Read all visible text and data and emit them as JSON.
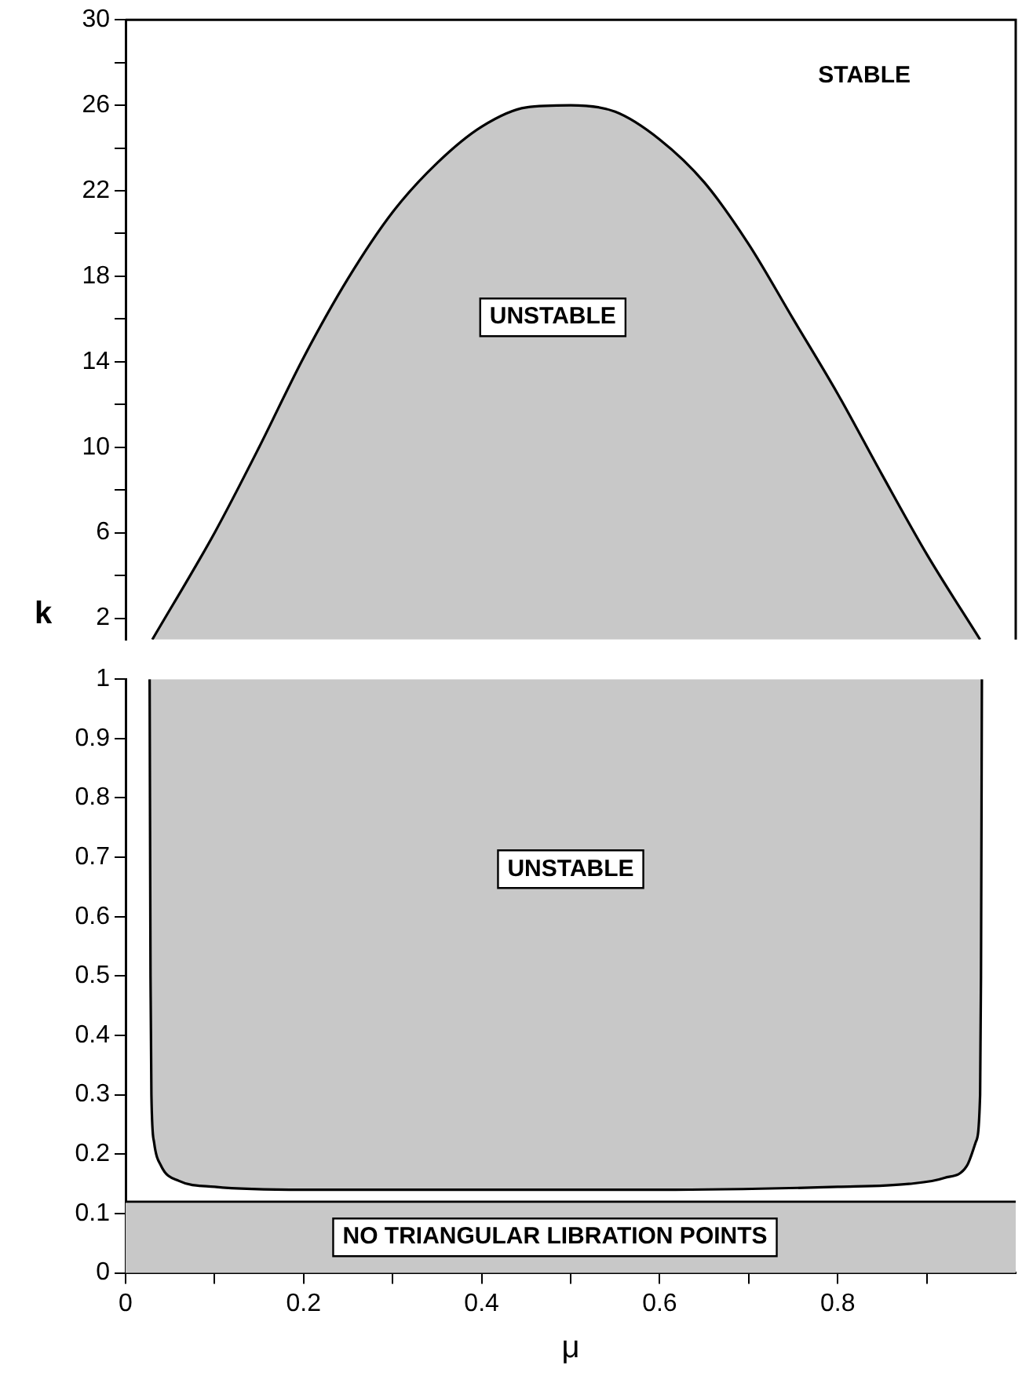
{
  "chart_data": [
    {
      "type": "area",
      "ylabel": "k",
      "xlim": [
        0,
        1
      ],
      "ylim": [
        1,
        30
      ],
      "tick_labels": "y",
      "yticks": [
        2,
        {
          "value": 4,
          "label": null
        },
        6,
        {
          "value": 8,
          "label": null
        },
        10,
        {
          "value": 12,
          "label": null
        },
        14,
        {
          "value": 16,
          "label": null
        },
        18,
        {
          "value": 20,
          "label": null
        },
        22,
        {
          "value": 24,
          "label": null
        },
        26,
        {
          "value": 28,
          "label": null
        },
        30
      ],
      "series": [
        {
          "color": "#c8c8c8",
          "x": [
            0.03,
            0.1,
            0.15,
            0.2,
            0.25,
            0.3,
            0.35,
            0.4,
            0.45,
            0.5,
            0.55,
            0.6,
            0.65,
            0.7,
            0.75,
            0.8,
            0.85,
            0.9,
            0.96
          ],
          "values": [
            1,
            6,
            10,
            14.2,
            17.9,
            21,
            23.3,
            25,
            25.9,
            26,
            25.7,
            24.4,
            22.4,
            19.5,
            16,
            12.5,
            8.7,
            5,
            1
          ]
        }
      ],
      "annotations": [
        "STABLE",
        "UNSTABLE"
      ]
    },
    {
      "type": "area",
      "xlabel": "μ",
      "xlim": [
        0,
        1
      ],
      "ylim": [
        0,
        1
      ],
      "xticks": [
        0,
        {
          "value": 0.1,
          "label": null
        },
        0.2,
        {
          "value": 0.3,
          "label": null
        },
        0.4,
        {
          "value": 0.5,
          "label": null
        },
        0.6,
        {
          "value": 0.7,
          "label": null
        },
        0.8,
        {
          "value": 0.9,
          "label": null
        }
      ],
      "yticks": [
        0,
        0.1,
        0.2,
        0.3,
        0.4,
        0.5,
        0.6,
        0.7,
        0.8,
        0.9,
        1
      ],
      "series": [
        {
          "color": "#c8c8c8",
          "x": [
            0.027,
            0.028,
            0.029,
            0.032,
            0.04,
            0.06,
            0.1,
            0.2,
            0.4,
            0.6,
            0.8,
            0.88,
            0.92,
            0.945,
            0.955,
            0.96,
            0.961,
            0.962
          ],
          "values": [
            1,
            0.5,
            0.3,
            0.22,
            0.18,
            0.155,
            0.145,
            0.14,
            0.14,
            0.14,
            0.145,
            0.15,
            0.16,
            0.18,
            0.22,
            0.3,
            0.5,
            1
          ]
        }
      ],
      "bands": [
        {
          "axis": "y",
          "from": 0,
          "to": 0.12,
          "label": "NO TRIANGULAR LIBRATION POINTS",
          "color": "#c8c8c8"
        }
      ],
      "ref_lines": [
        {
          "axis": "y",
          "value": 0.12,
          "color": "#000000"
        }
      ],
      "annotations": [
        "UNSTABLE"
      ]
    }
  ]
}
